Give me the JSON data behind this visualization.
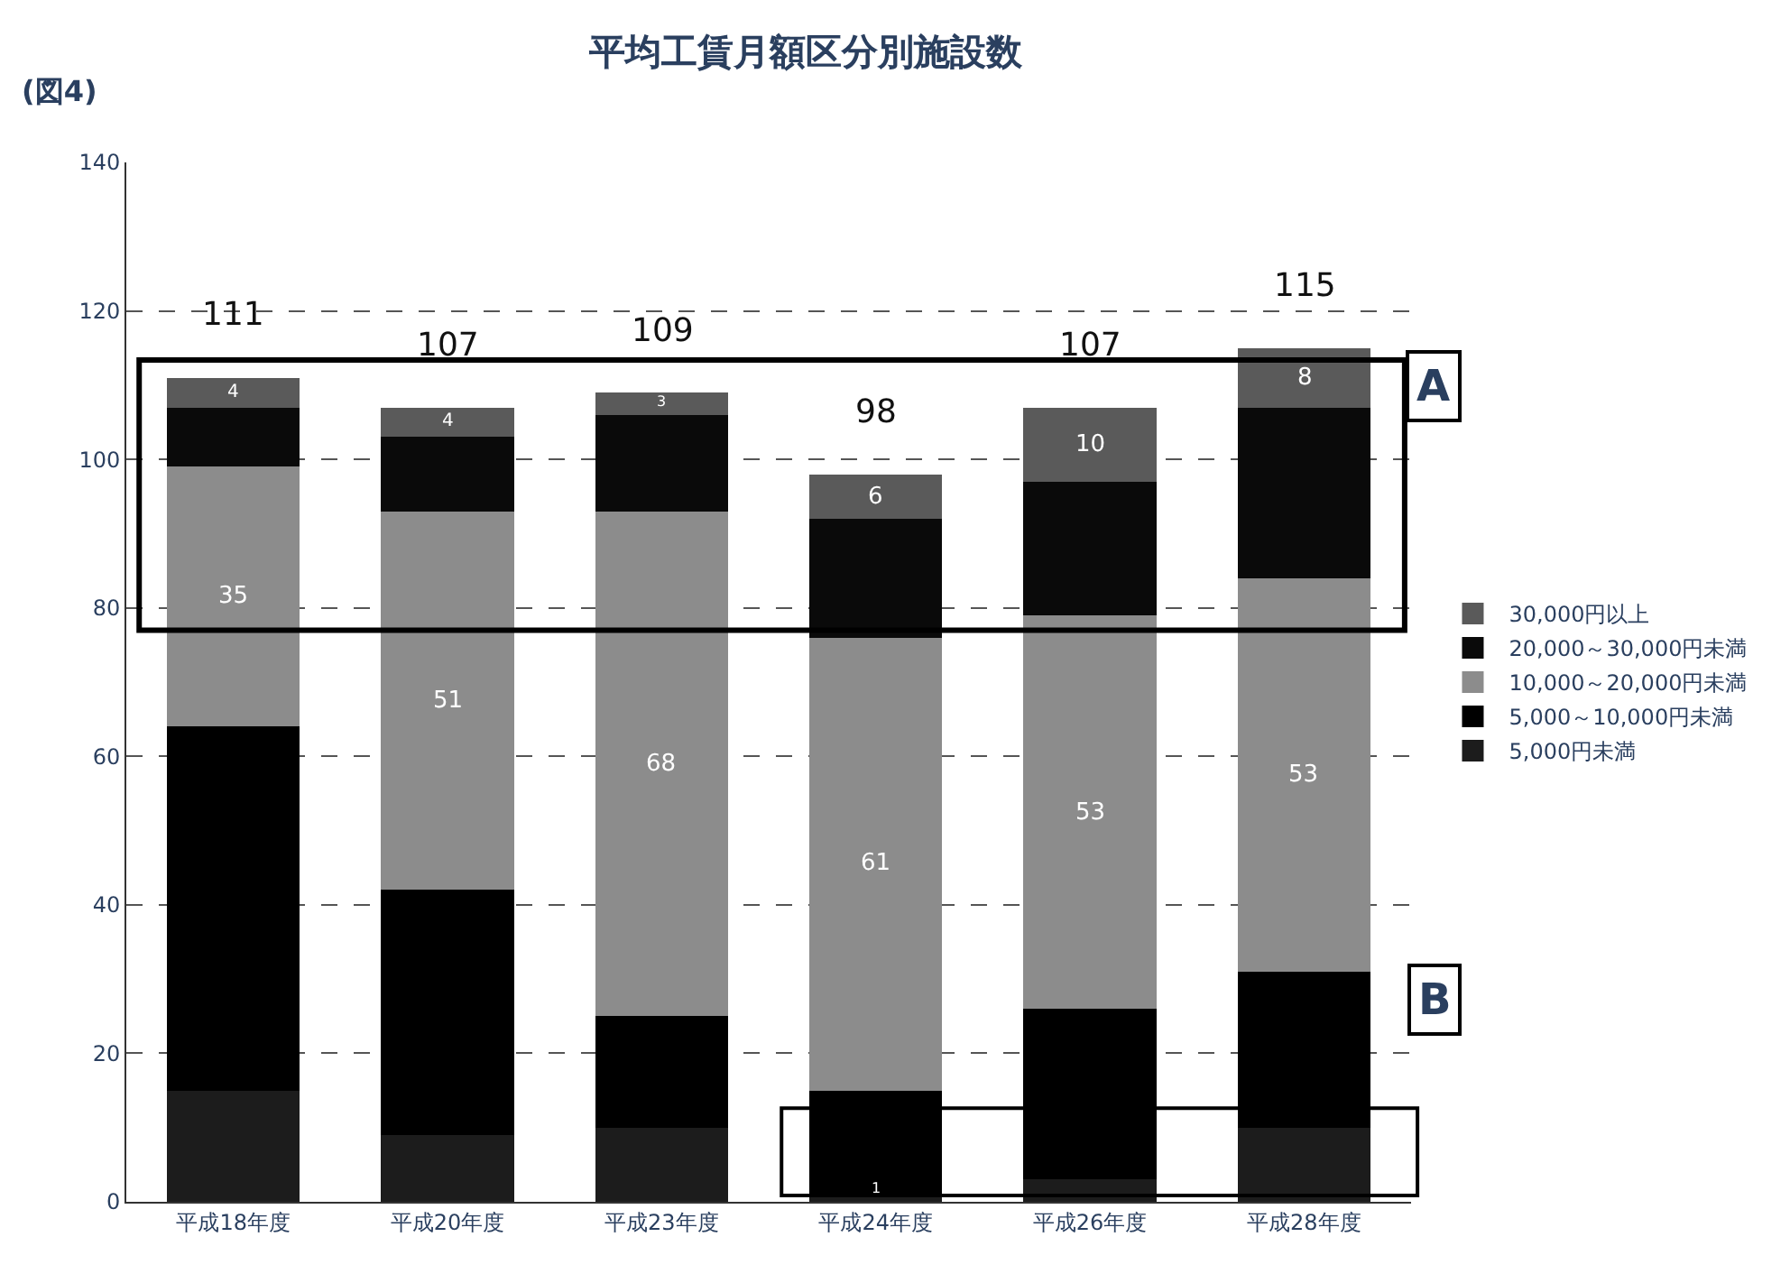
{
  "chart_data": {
    "type": "bar",
    "stacked": true,
    "title": "平均工賃月額区分別施設数",
    "categories": [
      "平成18年度",
      "平成20年度",
      "平成23年度",
      "平成24年度",
      "平成26年度",
      "平成28年度"
    ],
    "series": [
      {
        "name": "5,000円未満",
        "color": "#1c1c1c",
        "values": [
          15,
          9,
          10,
          1,
          3,
          10
        ],
        "value_labels": [
          null,
          null,
          null,
          "1",
          null,
          null
        ]
      },
      {
        "name": "5,000～10,000円未満",
        "color": "#000000",
        "values": [
          49,
          33,
          15,
          14,
          23,
          21
        ],
        "value_labels": [
          null,
          null,
          null,
          null,
          null,
          null
        ]
      },
      {
        "name": "10,000～20,000円未満",
        "color": "#8c8c8c",
        "values": [
          35,
          51,
          68,
          61,
          53,
          53
        ],
        "value_labels": [
          "35",
          "51",
          "68",
          "61",
          "53",
          "53"
        ]
      },
      {
        "name": "20,000～30,000円未満",
        "color": "#0a0a0a",
        "values": [
          8,
          10,
          13,
          16,
          18,
          23
        ],
        "value_labels": [
          null,
          null,
          null,
          null,
          null,
          null
        ]
      },
      {
        "name": "30,000円以上",
        "color": "#5a5a5a",
        "values": [
          4,
          4,
          3,
          6,
          10,
          8
        ],
        "value_labels": [
          "4",
          "4",
          "3",
          "6",
          "10",
          "8"
        ]
      }
    ],
    "totals": [
      "111",
      "107",
      "109",
      "98",
      "107",
      "115"
    ],
    "ylim": [
      0,
      140
    ],
    "yticks": [
      0,
      20,
      40,
      60,
      80,
      100,
      120,
      140
    ],
    "grid": "y",
    "legend": "right",
    "annotations": [
      "(図4)",
      "A",
      "B"
    ]
  }
}
